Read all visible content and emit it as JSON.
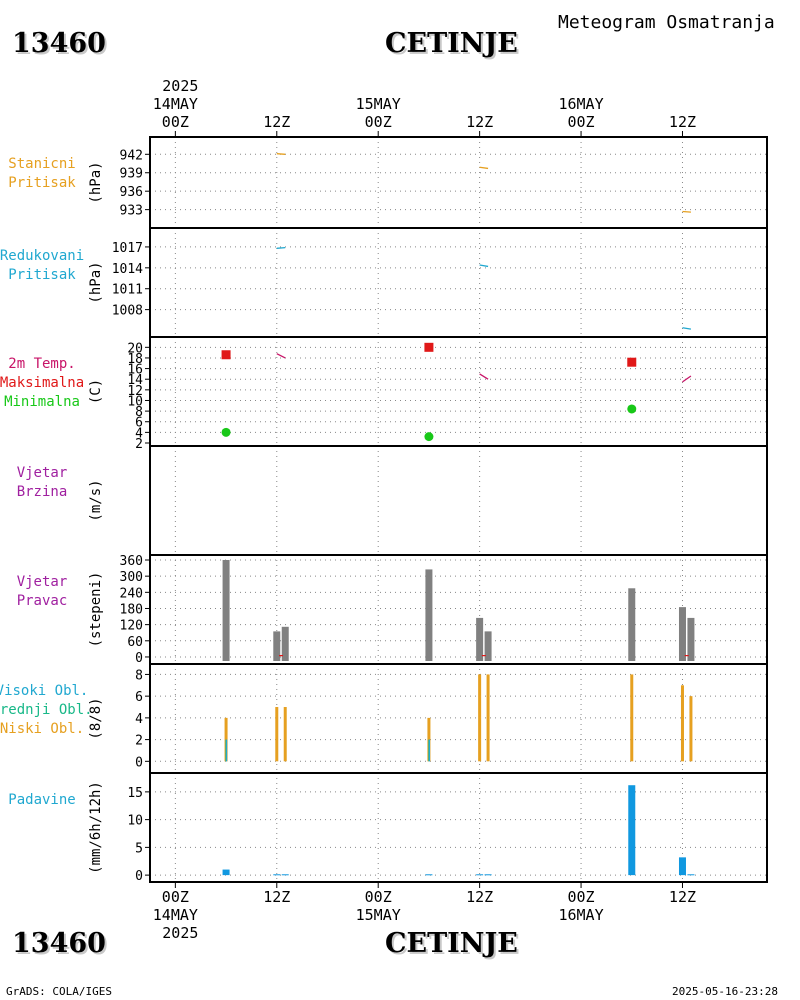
{
  "header": {
    "station_id": "13460",
    "station_name": "CETINJE",
    "meteogram_title": "Meteogram Osmatranja"
  },
  "footer": {
    "station_id": "13460",
    "station_name": "CETINJE",
    "software": "GrADS: COLA/IGES",
    "timestamp": "2025-05-16-23:28"
  },
  "time_axis": {
    "top_year": "2025",
    "bottom_year": "2025",
    "ticks": [
      {
        "hour": 0,
        "label": "00Z",
        "date": "14MAY"
      },
      {
        "hour": 12,
        "label": "12Z",
        "date": ""
      },
      {
        "hour": 24,
        "label": "00Z",
        "date": "15MAY"
      },
      {
        "hour": 36,
        "label": "12Z",
        "date": ""
      },
      {
        "hour": 48,
        "label": "00Z",
        "date": "16MAY"
      },
      {
        "hour": 60,
        "label": "12Z",
        "date": ""
      }
    ],
    "hour_range": [
      -3,
      70
    ]
  },
  "chart_data": [
    {
      "type": "line",
      "panel": "pressure_station",
      "labels": [
        "Stanicni",
        "Pritisak"
      ],
      "ylabel": "(hPa)",
      "label_color": "#e6a020",
      "yticks": [
        942,
        939,
        936,
        933
      ],
      "ylim": [
        930.5,
        944
      ],
      "series": [
        {
          "name": "Stanicni Pritisak",
          "color": "#e6a020",
          "segments": [
            [
              [
                12,
                942.1
              ],
              [
                13,
                942.0
              ]
            ],
            [
              [
                36,
                939.9
              ],
              [
                37,
                939.7
              ]
            ],
            [
              [
                60,
                932.7
              ],
              [
                61,
                932.6
              ]
            ]
          ]
        }
      ]
    },
    {
      "type": "line",
      "panel": "pressure_reduced",
      "labels": [
        "Redukovani",
        "Pritisak"
      ],
      "ylabel": "(hPa)",
      "label_color": "#20a8d0",
      "yticks": [
        1017,
        1014,
        1011,
        1008
      ],
      "ylim": [
        1004.5,
        1019
      ],
      "series": [
        {
          "name": "Redukovani Pritisak",
          "color": "#20a8d0",
          "segments": [
            [
              [
                12,
                1016.8
              ],
              [
                13,
                1016.9
              ]
            ],
            [
              [
                36,
                1014.4
              ],
              [
                37,
                1014.2
              ]
            ],
            [
              [
                60,
                1005.4
              ],
              [
                61,
                1005.2
              ]
            ]
          ]
        }
      ]
    },
    {
      "type": "scatter",
      "panel": "temperature",
      "labels": [
        "2m Temp.",
        "Maksimalna",
        "Minimalna"
      ],
      "label_colors": [
        "#c81468",
        "#e01818",
        "#18c818"
      ],
      "ylabel": "(C)",
      "yticks": [
        20,
        18,
        16,
        14,
        12,
        10,
        8,
        6,
        4,
        2
      ],
      "ylim": [
        2,
        21
      ],
      "temp_series": {
        "name": "2m Temp.",
        "color": "#c81468",
        "segments": [
          [
            [
              12,
              18.8
            ],
            [
              13,
              18.0
            ]
          ],
          [
            [
              36,
              15.0
            ],
            [
              37,
              14.0
            ]
          ],
          [
            [
              60,
              13.5
            ],
            [
              61,
              14.6
            ]
          ]
        ]
      },
      "max_points": {
        "name": "Maksimalna",
        "color": "#e01818",
        "points": [
          [
            6,
            18.6
          ],
          [
            30,
            20.0
          ],
          [
            54,
            17.2
          ]
        ]
      },
      "min_points": {
        "name": "Minimalna",
        "color": "#18c818",
        "points": [
          [
            6,
            4.0
          ],
          [
            30,
            3.2
          ],
          [
            54,
            8.4
          ]
        ]
      }
    },
    {
      "type": "bar",
      "panel": "wind_speed",
      "labels": [
        "Vjetar",
        "Brzina"
      ],
      "label_color": "#a020a0",
      "ylabel": "(m/s)",
      "yticks": [],
      "ylim": [
        0,
        1
      ],
      "bars": []
    },
    {
      "type": "bar",
      "panel": "wind_direction",
      "labels": [
        "Vjetar",
        "Pravac"
      ],
      "label_color": "#a020a0",
      "ylabel": "(stepeni)",
      "yticks": [
        360,
        300,
        240,
        180,
        120,
        60,
        0
      ],
      "ylim": [
        -15,
        360
      ],
      "bar_color": "#808080",
      "bars": [
        [
          6,
          360
        ],
        [
          12,
          95
        ],
        [
          13,
          112
        ],
        [
          30,
          325
        ],
        [
          36,
          145
        ],
        [
          37,
          95
        ],
        [
          54,
          255
        ],
        [
          60,
          185
        ],
        [
          61,
          145
        ]
      ],
      "marks": [
        [
          12.5,
          5
        ],
        [
          36.5,
          5
        ],
        [
          60.5,
          5
        ]
      ]
    },
    {
      "type": "bar",
      "panel": "clouds",
      "labels": [
        "Visoki Obl.",
        "Srednji Obl.",
        "Niski Obl."
      ],
      "label_colors": [
        "#20a8d0",
        "#18b888",
        "#e6a020"
      ],
      "ylabel": "(8/8)",
      "yticks": [
        8,
        6,
        4,
        2,
        0
      ],
      "ylim": [
        -0.8,
        8.5
      ],
      "series": [
        {
          "name": "Niski Obl.",
          "color": "#e6a020",
          "values": [
            [
              6,
              4
            ],
            [
              12,
              5
            ],
            [
              13,
              5
            ],
            [
              30,
              4
            ],
            [
              36,
              8
            ],
            [
              37,
              8
            ],
            [
              54,
              8
            ],
            [
              60,
              7
            ],
            [
              61,
              6
            ]
          ]
        },
        {
          "name": "Srednji Obl.",
          "color": "#18b888",
          "values": [
            [
              6,
              2
            ],
            [
              30,
              2
            ]
          ]
        },
        {
          "name": "Visoki Obl.",
          "color": "#20a8d0",
          "values": [
            [
              6,
              2
            ],
            [
              30,
              2
            ]
          ]
        }
      ]
    },
    {
      "type": "bar",
      "panel": "precipitation",
      "labels": [
        "Padavine"
      ],
      "label_color": "#20a8d0",
      "ylabel": "(mm/6h/12h)",
      "yticks": [
        15,
        10,
        5,
        0
      ],
      "ylim": [
        -0.7,
        17.5
      ],
      "bar_color": "#1098e0",
      "bars": [
        [
          6,
          1.0
        ],
        [
          12,
          0.15
        ],
        [
          13,
          0.15
        ],
        [
          30,
          0.15
        ],
        [
          36,
          0.15
        ],
        [
          37,
          0.15
        ],
        [
          54,
          16.2
        ],
        [
          60,
          3.2
        ],
        [
          61,
          0.15
        ]
      ]
    }
  ]
}
